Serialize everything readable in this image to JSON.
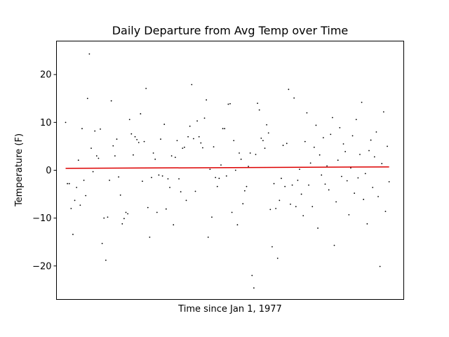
{
  "chart_data": {
    "type": "scatter",
    "title": "Daily Departure from Avg Temp over Time",
    "xlabel": "Time since Jan 1, 1977",
    "ylabel": "Temperature (F)",
    "xlim": [
      -5,
      185
    ],
    "ylim": [
      -27,
      27
    ],
    "yticks": [
      -20,
      -10,
      0,
      10,
      20
    ],
    "ytick_labels": [
      "−20",
      "−10",
      "0",
      "10",
      "20"
    ],
    "xticks_visible": false,
    "grid": false,
    "legend": "none",
    "colors": {
      "points": "#000000",
      "trend": "#dd0000",
      "frame": "#000000"
    },
    "series": [
      {
        "marker": "point",
        "x": [
          0,
          1,
          2,
          3,
          4,
          5,
          6,
          7,
          8,
          9,
          10,
          11,
          12,
          13,
          14,
          15,
          16,
          17,
          18,
          19,
          20,
          21,
          22,
          23,
          24,
          25,
          26,
          27,
          28,
          29,
          30,
          31,
          32,
          33,
          34,
          35,
          36,
          37,
          38,
          39,
          40,
          41,
          42,
          43,
          44,
          45,
          46,
          47,
          48,
          49,
          50,
          51,
          52,
          53,
          54,
          55,
          56,
          57,
          58,
          59,
          60,
          61,
          62,
          63,
          64,
          65,
          66,
          67,
          68,
          69,
          70,
          71,
          72,
          73,
          74,
          75,
          76,
          77,
          78,
          79,
          80,
          81,
          82,
          83,
          84,
          85,
          86,
          87,
          88,
          89,
          90,
          91,
          92,
          93,
          94,
          95,
          96,
          97,
          98,
          99,
          100,
          101,
          102,
          103,
          104,
          105,
          106,
          107,
          108,
          109,
          110,
          111,
          112,
          113,
          114,
          115,
          116,
          117,
          118,
          119,
          120,
          121,
          122,
          123,
          124,
          125,
          126,
          127,
          128,
          129,
          130,
          131,
          132,
          133,
          134,
          135,
          136,
          137,
          138,
          139,
          140,
          141,
          142,
          143,
          144,
          145,
          146,
          147,
          148,
          149,
          150,
          151,
          152,
          153,
          154,
          155,
          156,
          157,
          158,
          159,
          160,
          161,
          162,
          163,
          164,
          165,
          166,
          167,
          168,
          169,
          170,
          171,
          172,
          173,
          174,
          175,
          176,
          177
        ],
        "y": [
          10.0,
          -2.8,
          -2.8,
          -8.0,
          -13.4,
          -6.3,
          -3.6,
          2.1,
          -7.3,
          8.7,
          -2.1,
          -5.3,
          15.0,
          24.3,
          4.6,
          -0.3,
          8.2,
          3.0,
          2.5,
          8.6,
          -15.3,
          -10.0,
          -18.8,
          -9.8,
          -2.1,
          14.5,
          5.1,
          3.0,
          6.5,
          -1.4,
          -5.2,
          -11.2,
          -10.1,
          -8.8,
          -9.1,
          10.6,
          7.6,
          3.2,
          7.0,
          6.4,
          5.8,
          11.8,
          -2.3,
          6.0,
          17.1,
          -7.8,
          -14.0,
          -1.5,
          3.6,
          2.3,
          -8.8,
          -1.0,
          6.5,
          -1.2,
          9.6,
          -8.1,
          -1.8,
          -3.6,
          3.0,
          -11.4,
          2.7,
          6.2,
          -1.8,
          -4.5,
          4.6,
          4.8,
          -6.3,
          7.0,
          9.2,
          17.9,
          6.6,
          -4.4,
          10.3,
          7.0,
          5.7,
          4.7,
          10.9,
          14.7,
          -14.0,
          0.2,
          -9.8,
          4.9,
          -1.5,
          -3.4,
          -1.7,
          1.1,
          8.7,
          8.7,
          -1.2,
          13.8,
          13.9,
          -8.8,
          6.2,
          0.0,
          -11.4,
          3.6,
          2.3,
          -7.0,
          -4.3,
          -3.4,
          0.8,
          3.6,
          -22.0,
          -24.6,
          3.3,
          14.0,
          12.6,
          6.7,
          6.2,
          4.6,
          9.5,
          7.8,
          -8.2,
          -16.0,
          -2.8,
          -8.0,
          -18.4,
          -6.3,
          -1.7,
          5.2,
          -3.4,
          5.6,
          16.9,
          -7.1,
          -3.1,
          15.1,
          -7.6,
          -2.1,
          0.2,
          -5.0,
          -9.5,
          6.0,
          12.0,
          -3.1,
          1.5,
          -7.6,
          4.8,
          9.4,
          -12.1,
          3.2,
          -1.0,
          6.8,
          -2.9,
          0.9,
          -4.1,
          7.5,
          11.0,
          -15.7,
          -6.6,
          2.1,
          8.9,
          -1.3,
          5.5,
          3.9,
          -2.2,
          -9.3,
          0.5,
          7.2,
          -4.8,
          10.6,
          -1.6,
          3.3,
          14.2,
          -6.1,
          -0.7,
          -11.2,
          4.1,
          6.3,
          -3.6,
          2.8,
          8.0,
          -5.5,
          -20.1,
          1.4,
          12.2,
          -8.6,
          5.0,
          -2.4
        ]
      },
      {
        "marker": "line",
        "x": [
          0,
          177
        ],
        "y": [
          0.4,
          0.7
        ]
      }
    ]
  }
}
